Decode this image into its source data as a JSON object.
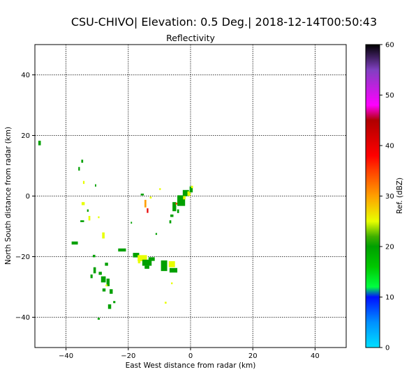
{
  "figure": {
    "suptitle": "CSU-CHIVO| Elevation: 0.5 Deg.| 2018-12-14T00:50:43"
  },
  "chart_data": {
    "type": "heatmap",
    "title": "Reflectivity",
    "xlabel": "East West distance from radar (km)",
    "ylabel": "North South distance from radar (km)",
    "xlim": [
      -50,
      50
    ],
    "ylim": [
      -50,
      50
    ],
    "xticks": [
      -40,
      -20,
      0,
      20,
      40
    ],
    "yticks": [
      -40,
      -20,
      0,
      20,
      40
    ],
    "grid": true,
    "colorbar": {
      "label": "Ref. (dBZ)",
      "min": 0,
      "max": 60,
      "ticks": [
        0,
        10,
        20,
        30,
        40,
        50,
        60
      ],
      "stops": [
        {
          "v": 0,
          "c": "#00e0ff"
        },
        {
          "v": 5,
          "c": "#0090ff"
        },
        {
          "v": 10,
          "c": "#0010ff"
        },
        {
          "v": 12,
          "c": "#00ff40"
        },
        {
          "v": 16,
          "c": "#00c800"
        },
        {
          "v": 20,
          "c": "#00a000"
        },
        {
          "v": 22,
          "c": "#40b000"
        },
        {
          "v": 25,
          "c": "#e8ff00"
        },
        {
          "v": 30,
          "c": "#ffa000"
        },
        {
          "v": 35,
          "c": "#ff4000"
        },
        {
          "v": 38,
          "c": "#ff0000"
        },
        {
          "v": 45,
          "c": "#b00000"
        },
        {
          "v": 48,
          "c": "#ff00ff"
        },
        {
          "v": 55,
          "c": "#8040c0"
        },
        {
          "v": 60,
          "c": "#000000"
        }
      ]
    },
    "echoes": [
      {
        "x": -48.5,
        "y": 17.5,
        "w": 0.8,
        "h": 1.5,
        "dbz": 20
      },
      {
        "x": -34.8,
        "y": 11.5,
        "w": 0.6,
        "h": 1.0,
        "dbz": 20
      },
      {
        "x": -35.8,
        "y": 9.0,
        "w": 0.5,
        "h": 1.2,
        "dbz": 20
      },
      {
        "x": -34.3,
        "y": 4.5,
        "w": 0.5,
        "h": 1.0,
        "dbz": 25
      },
      {
        "x": -30.5,
        "y": 3.5,
        "w": 0.4,
        "h": 0.8,
        "dbz": 20
      },
      {
        "x": -34.5,
        "y": -2.5,
        "w": 1.0,
        "h": 1.0,
        "dbz": 25
      },
      {
        "x": -33.0,
        "y": -4.8,
        "w": 0.5,
        "h": 0.8,
        "dbz": 20
      },
      {
        "x": -34.8,
        "y": -8.3,
        "w": 1.2,
        "h": 0.6,
        "dbz": 20
      },
      {
        "x": -32.5,
        "y": -7.3,
        "w": 0.6,
        "h": 1.5,
        "dbz": 25
      },
      {
        "x": -29.5,
        "y": -7.0,
        "w": 0.5,
        "h": 0.6,
        "dbz": 25
      },
      {
        "x": -28.0,
        "y": -13.0,
        "w": 0.8,
        "h": 2.0,
        "dbz": 25
      },
      {
        "x": -37.2,
        "y": -15.5,
        "w": 2.0,
        "h": 1.0,
        "dbz": 20
      },
      {
        "x": -31.0,
        "y": -19.8,
        "w": 0.8,
        "h": 0.8,
        "dbz": 20
      },
      {
        "x": -30.8,
        "y": -24.5,
        "w": 0.8,
        "h": 2.0,
        "dbz": 20
      },
      {
        "x": -31.8,
        "y": -26.5,
        "w": 0.7,
        "h": 1.2,
        "dbz": 20
      },
      {
        "x": -29.0,
        "y": -25.5,
        "w": 1.0,
        "h": 1.0,
        "dbz": 20
      },
      {
        "x": -28.0,
        "y": -27.5,
        "w": 1.5,
        "h": 2.0,
        "dbz": 20
      },
      {
        "x": -27.0,
        "y": -22.5,
        "w": 1.0,
        "h": 1.0,
        "dbz": 20
      },
      {
        "x": -26.5,
        "y": -28.5,
        "w": 1.0,
        "h": 2.5,
        "dbz": 20
      },
      {
        "x": -25.5,
        "y": -31.5,
        "w": 1.0,
        "h": 1.5,
        "dbz": 20
      },
      {
        "x": -27.8,
        "y": -31.0,
        "w": 1.0,
        "h": 1.0,
        "dbz": 20
      },
      {
        "x": -27.0,
        "y": -29.5,
        "w": 0.6,
        "h": 0.6,
        "dbz": 25
      },
      {
        "x": -26.0,
        "y": -36.5,
        "w": 1.0,
        "h": 1.5,
        "dbz": 20
      },
      {
        "x": -24.5,
        "y": -35.0,
        "w": 0.7,
        "h": 0.7,
        "dbz": 20
      },
      {
        "x": -29.5,
        "y": -40.5,
        "w": 0.7,
        "h": 0.6,
        "dbz": 20
      },
      {
        "x": -22.0,
        "y": -17.8,
        "w": 2.5,
        "h": 1.0,
        "dbz": 20
      },
      {
        "x": -19.0,
        "y": -8.8,
        "w": 0.4,
        "h": 0.6,
        "dbz": 20
      },
      {
        "x": -17.5,
        "y": -19.5,
        "w": 2.0,
        "h": 1.5,
        "dbz": 20
      },
      {
        "x": -15.5,
        "y": -20.5,
        "w": 3.0,
        "h": 2.0,
        "dbz": 25
      },
      {
        "x": -14.0,
        "y": -22.0,
        "w": 3.0,
        "h": 2.0,
        "dbz": 20
      },
      {
        "x": -14.0,
        "y": -23.5,
        "w": 1.5,
        "h": 1.0,
        "dbz": 20
      },
      {
        "x": -12.5,
        "y": -20.8,
        "w": 2.0,
        "h": 1.2,
        "dbz": 20
      },
      {
        "x": -16.5,
        "y": -21.8,
        "w": 0.8,
        "h": 0.8,
        "dbz": 25
      },
      {
        "x": -15.5,
        "y": 0.5,
        "w": 1.0,
        "h": 0.6,
        "dbz": 20
      },
      {
        "x": -14.5,
        "y": -2.5,
        "w": 0.6,
        "h": 2.5,
        "dbz": 30
      },
      {
        "x": -13.8,
        "y": -4.8,
        "w": 0.5,
        "h": 1.5,
        "dbz": 40
      },
      {
        "x": -12.8,
        "y": -0.5,
        "w": 0.6,
        "h": 0.6,
        "dbz": 25
      },
      {
        "x": -11.0,
        "y": -12.5,
        "w": 0.5,
        "h": 0.6,
        "dbz": 20
      },
      {
        "x": -9.8,
        "y": 2.3,
        "w": 0.5,
        "h": 0.6,
        "dbz": 25
      },
      {
        "x": -8.5,
        "y": -23.0,
        "w": 2.0,
        "h": 3.5,
        "dbz": 20
      },
      {
        "x": -6.0,
        "y": -22.5,
        "w": 2.0,
        "h": 2.0,
        "dbz": 25
      },
      {
        "x": -5.5,
        "y": -24.5,
        "w": 2.5,
        "h": 1.5,
        "dbz": 20
      },
      {
        "x": -8.0,
        "y": -35.2,
        "w": 0.6,
        "h": 0.6,
        "dbz": 25
      },
      {
        "x": -6.0,
        "y": -28.8,
        "w": 0.5,
        "h": 0.6,
        "dbz": 25
      },
      {
        "x": -6.0,
        "y": -6.5,
        "w": 1.0,
        "h": 0.8,
        "dbz": 20
      },
      {
        "x": -5.2,
        "y": -3.5,
        "w": 1.2,
        "h": 3.0,
        "dbz": 20
      },
      {
        "x": -4.5,
        "y": -2.5,
        "w": 0.6,
        "h": 0.6,
        "dbz": 35
      },
      {
        "x": -3.0,
        "y": -1.5,
        "w": 2.5,
        "h": 3.5,
        "dbz": 20
      },
      {
        "x": -2.0,
        "y": -0.5,
        "w": 0.8,
        "h": 1.2,
        "dbz": 25
      },
      {
        "x": -1.5,
        "y": 1.0,
        "w": 2.0,
        "h": 2.0,
        "dbz": 20
      },
      {
        "x": -0.5,
        "y": 0.8,
        "w": 1.0,
        "h": 1.5,
        "dbz": 25
      },
      {
        "x": 0.2,
        "y": 2.2,
        "w": 1.0,
        "h": 2.0,
        "dbz": 20
      },
      {
        "x": 0.5,
        "y": 3.0,
        "w": 0.6,
        "h": 0.8,
        "dbz": 25
      },
      {
        "x": -6.5,
        "y": -8.5,
        "w": 0.6,
        "h": 1.0,
        "dbz": 20
      },
      {
        "x": -4.0,
        "y": -5.0,
        "w": 0.6,
        "h": 1.2,
        "dbz": 20
      }
    ]
  }
}
